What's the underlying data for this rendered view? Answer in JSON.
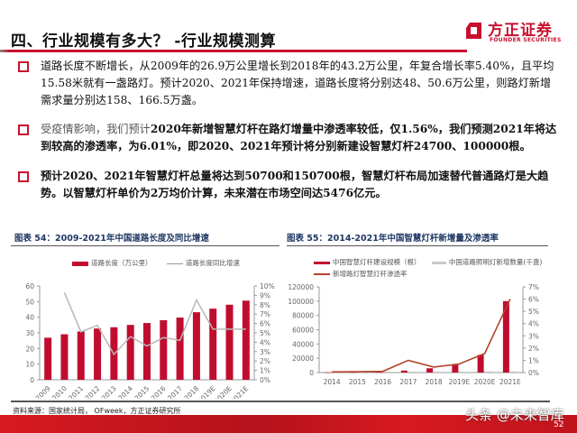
{
  "header": {
    "title": "四、行业规模有多大？ -行业规模测算",
    "logo": {
      "cn": "方正证券",
      "en": "FOUNDER SECURITIES",
      "brand_color": "#c8102e"
    }
  },
  "bullets": [
    {
      "text": "道路长度不断增长，从2009年的26.9万公里增长到2018年的43.2万公里，年复合增长率5.40%，且平均15.58米就有一盏路灯。预计2020、2021年保持增速，道路长度将分别达48、50.6万公里，则路灯新增需求量分别达158、166.5万盏。"
    },
    {
      "lead": "受疫情影响，我们预计",
      "text": "2020年新增智慧灯杆在路灯增量中渗透率较低，仅1.56%，我们预测2021年将达到较高的渗透率，为6.01%，即2020、2021年预计将分别新建设智慧灯杆24700、100000根。"
    },
    {
      "text": "预计2020、2021年智慧灯杆总量将达到50700和150700根，智慧灯杆布局加速替代普通路灯是大趋势。以智慧灯杆单价为2万均价计算，未来潜在市场空间达5476亿元。"
    }
  ],
  "chart_data": [
    {
      "id": "chart54",
      "type": "bar",
      "title": "图表 54：2009-2021年中国道路长度及同比增速",
      "categories": [
        "2009",
        "2010",
        "2011",
        "2012",
        "2013",
        "2014",
        "2015",
        "2016",
        "2017",
        "2018",
        "2019E",
        "2020E",
        "2021E"
      ],
      "series": [
        {
          "name": "道路长度（万公里）",
          "type": "bar",
          "axis": "left",
          "color": "#c00d2f",
          "values": [
            26.9,
            29.1,
            30.9,
            32.8,
            33.6,
            35.1,
            36.3,
            38.1,
            39.8,
            43.2,
            45.5,
            48.0,
            50.6
          ]
        },
        {
          "name": "道路长度同比增速",
          "type": "line",
          "axis": "right",
          "color": "#b8b8b8",
          "values": [
            null,
            9.3,
            5.1,
            5.8,
            2.7,
            4.6,
            3.6,
            4.5,
            4.2,
            8.5,
            5.4,
            5.4,
            5.4
          ]
        }
      ],
      "y_left": {
        "min": 0,
        "max": 60,
        "ticks": [
          0,
          10,
          20,
          30,
          40,
          50,
          60
        ]
      },
      "y_right": {
        "min": 0,
        "max": 10,
        "ticks": [
          "0%",
          "1%",
          "2%",
          "3%",
          "4%",
          "5%",
          "6%",
          "7%",
          "8%",
          "9%",
          "10%"
        ]
      },
      "legend_position": "top",
      "grid": false
    },
    {
      "id": "chart55",
      "type": "bar",
      "title": "图表 55：2014-2021年中国智慧灯杆新增量及渗透率",
      "categories": [
        "2014",
        "2015",
        "2016",
        "2017",
        "2018",
        "2019E",
        "2020E",
        "2021E"
      ],
      "series": [
        {
          "name": "中国智慧灯杆建设规模（根）",
          "type": "bar",
          "axis": "left",
          "color": "#c00d2f",
          "values": [
            200,
            300,
            500,
            2800,
            6000,
            12000,
            24700,
            100000
          ]
        },
        {
          "name": "中国道路照明灯新增数量(千盏)",
          "type": "bar",
          "axis": "left",
          "color": "#c8c8c8",
          "values": [
            1200,
            1250,
            1300,
            1400,
            1350,
            1450,
            1580,
            1665
          ]
        },
        {
          "name": "新增路灯智慧灯杆渗透率",
          "type": "line",
          "axis": "right",
          "color": "#b5412a",
          "values": [
            0.05,
            0.07,
            0.1,
            1.0,
            0.45,
            0.7,
            1.56,
            6.01
          ]
        }
      ],
      "y_left": {
        "min": 0,
        "max": 120000,
        "ticks": [
          0,
          20000,
          40000,
          60000,
          80000,
          100000,
          120000
        ]
      },
      "y_right": {
        "min": 0,
        "max": 7,
        "ticks": [
          "0%",
          "1%",
          "2%",
          "3%",
          "4%",
          "5%",
          "6%",
          "7%"
        ]
      },
      "legend_position": "top",
      "grid": false
    }
  ],
  "footer": {
    "source": "资料来源：国家统计局， OFweek，方正证券研究所",
    "watermark": "头条 @未来智库",
    "page_number": "52"
  }
}
